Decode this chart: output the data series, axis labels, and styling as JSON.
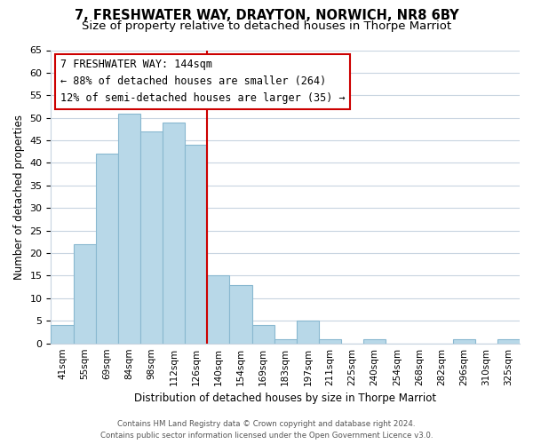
{
  "title": "7, FRESHWATER WAY, DRAYTON, NORWICH, NR8 6BY",
  "subtitle": "Size of property relative to detached houses in Thorpe Marriot",
  "xlabel": "Distribution of detached houses by size in Thorpe Marriot",
  "ylabel": "Number of detached properties",
  "bin_labels": [
    "41sqm",
    "55sqm",
    "69sqm",
    "84sqm",
    "98sqm",
    "112sqm",
    "126sqm",
    "140sqm",
    "154sqm",
    "169sqm",
    "183sqm",
    "197sqm",
    "211sqm",
    "225sqm",
    "240sqm",
    "254sqm",
    "268sqm",
    "282sqm",
    "296sqm",
    "310sqm",
    "325sqm"
  ],
  "bar_values": [
    4,
    22,
    42,
    51,
    47,
    49,
    44,
    15,
    13,
    4,
    1,
    5,
    1,
    0,
    1,
    0,
    0,
    0,
    1,
    0,
    1
  ],
  "bar_color": "#b8d8e8",
  "bar_edge_color": "#89b8d0",
  "ylim": [
    0,
    65
  ],
  "yticks": [
    0,
    5,
    10,
    15,
    20,
    25,
    30,
    35,
    40,
    45,
    50,
    55,
    60,
    65
  ],
  "reference_line_x": 7.0,
  "reference_line_color": "#cc0000",
  "annotation_title": "7 FRESHWATER WAY: 144sqm",
  "annotation_line1": "← 88% of detached houses are smaller (264)",
  "annotation_line2": "12% of semi-detached houses are larger (35) →",
  "annotation_box_color": "#ffffff",
  "annotation_box_edge_color": "#cc0000",
  "footer1": "Contains HM Land Registry data © Crown copyright and database right 2024.",
  "footer2": "Contains public sector information licensed under the Open Government Licence v3.0.",
  "bg_color": "#ffffff",
  "grid_color": "#c8d4e0",
  "title_fontsize": 10.5,
  "subtitle_fontsize": 9.5
}
